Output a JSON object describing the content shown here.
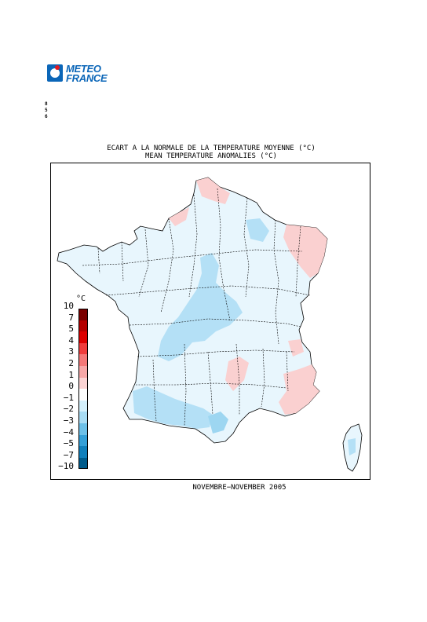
{
  "logo": {
    "line1": "METEO",
    "line2": "FRANCE",
    "brand_color": "#0b66b8",
    "accent_color": "#e01b24"
  },
  "side_marks": [
    "8",
    "5",
    "6"
  ],
  "title": {
    "line1": "ECART A LA NORMALE DE LA TEMPERATURE MOYENNE (°C)",
    "line2": "MEAN TEMPERATURE ANOMALIES (°C)"
  },
  "legend": {
    "unit": "°C",
    "labels": [
      "10",
      "7",
      "5",
      "4",
      "3",
      "2",
      "1",
      "0",
      "−1",
      "−2",
      "−3",
      "−4",
      "−5",
      "−7",
      "−10"
    ],
    "colors": [
      "#7a0000",
      "#b40000",
      "#dc0000",
      "#f03c3c",
      "#f57878",
      "#f8a8a8",
      "#fcd4d4",
      "#ffffff",
      "#d4f0fc",
      "#a8dcf4",
      "#6cc0e8",
      "#34a0d8",
      "#1080bc",
      "#005c8c"
    ]
  },
  "period": "NOVEMBRE−NOVEMBER 2005"
}
